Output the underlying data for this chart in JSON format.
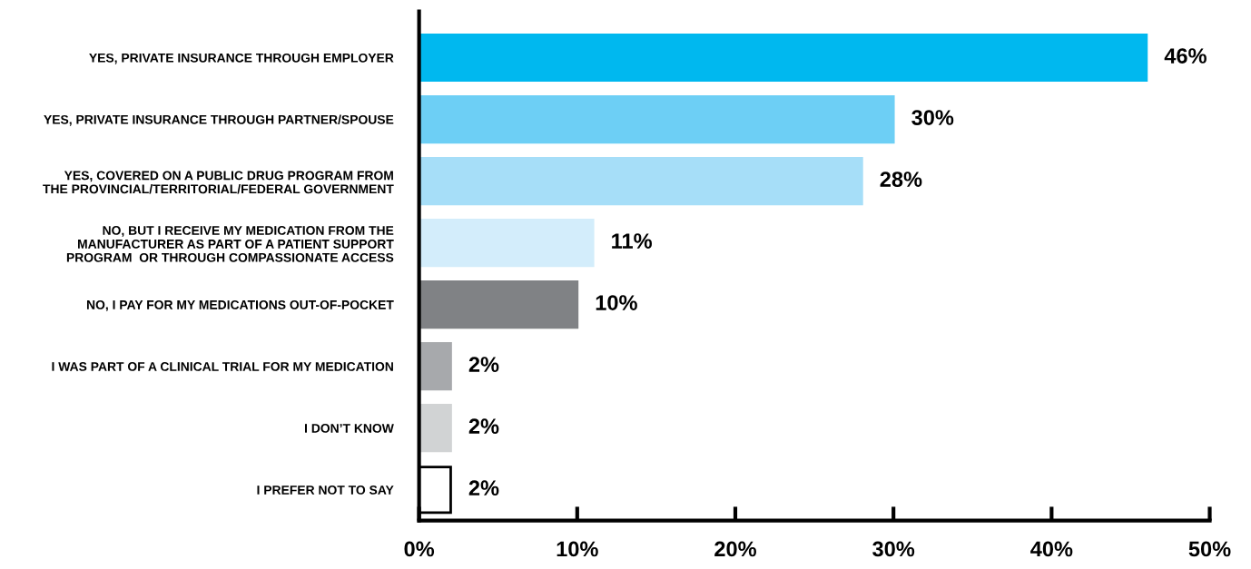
{
  "chart_data": {
    "type": "bar",
    "orientation": "horizontal",
    "categories": [
      "YES, PRIVATE INSURANCE THROUGH EMPLOYER",
      "YES, PRIVATE INSURANCE THROUGH PARTNER/SPOUSE",
      "YES, COVERED ON A PUBLIC DRUG PROGRAM FROM\nTHE PROVINCIAL/TERRITORIAL/FEDERAL GOVERNMENT",
      "NO, BUT I RECEIVE MY MEDICATION FROM THE\nMANUFACTURER AS PART OF A PATIENT SUPPORT\nPROGRAM  OR THROUGH COMPASSIONATE ACCESS",
      "NO, I PAY FOR MY MEDICATIONS OUT-OF-POCKET",
      "I WAS PART OF A CLINICAL TRIAL FOR MY MEDICATION",
      "I DON’T KNOW",
      "I PREFER NOT TO SAY"
    ],
    "values": [
      46,
      30,
      28,
      11,
      10,
      2,
      2,
      2
    ],
    "colors": [
      "#00b8ef",
      "#6dcff5",
      "#a6def8",
      "#d3edfb",
      "#808285",
      "#a7a9ac",
      "#d1d3d4",
      "#ffffff"
    ],
    "value_labels": [
      "46%",
      "30%",
      "28%",
      "11%",
      "10%",
      "2%",
      "2%",
      "2%"
    ],
    "xlim": [
      0,
      50
    ],
    "xticks": [
      {
        "value": 0,
        "label": "0%"
      },
      {
        "value": 10,
        "label": "10%"
      },
      {
        "value": 20,
        "label": "20%"
      },
      {
        "value": 30,
        "label": "30%"
      },
      {
        "value": 40,
        "label": "40%"
      },
      {
        "value": 50,
        "label": "50%"
      }
    ],
    "grid": false,
    "legend": false
  }
}
